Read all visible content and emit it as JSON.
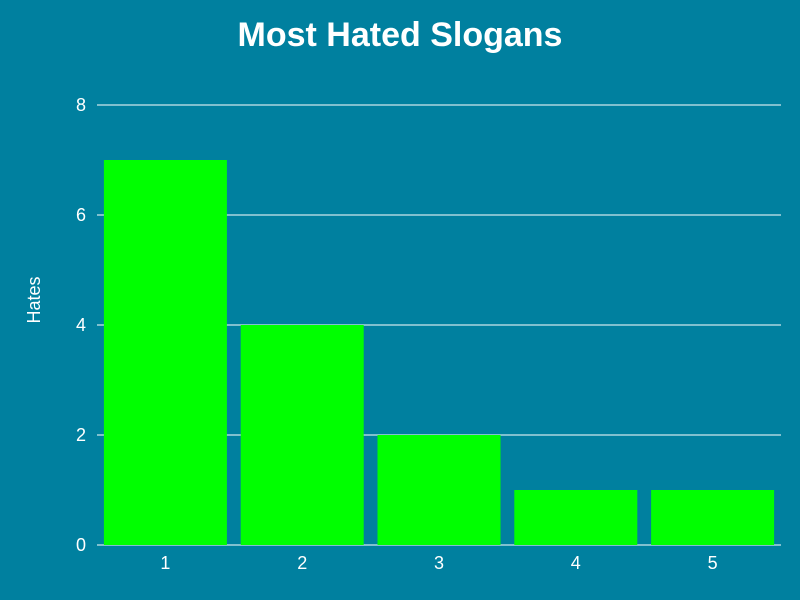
{
  "chart_data": {
    "type": "bar",
    "title": "Most Hated Slogans",
    "xlabel": "",
    "ylabel": "Hates",
    "categories": [
      "1",
      "2",
      "3",
      "4",
      "5"
    ],
    "values": [
      7,
      4,
      2,
      1,
      1
    ],
    "ylim": [
      0,
      8
    ],
    "yticks": [
      0,
      2,
      4,
      6,
      8
    ],
    "grid": true,
    "legend": "none",
    "colors": {
      "background": "#00809f",
      "bar": "#00ff00",
      "text": "#ffffff",
      "grid": "#ffffff"
    }
  }
}
